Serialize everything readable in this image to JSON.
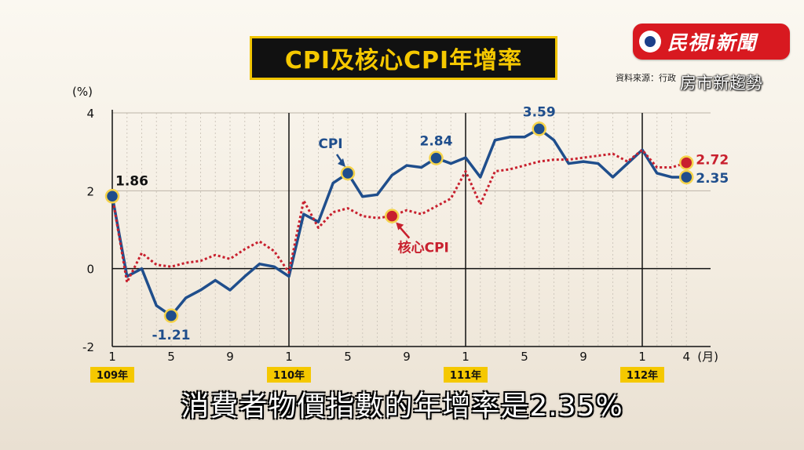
{
  "title": "CPI及核心CPI年增率",
  "logo": {
    "text": "民視i新聞"
  },
  "source": "資料來源：行政",
  "watermark": "房市新趨勢",
  "subtitle": "消費者物價指數的年增率是2.35%",
  "chart_data": {
    "type": "line",
    "ylabel": "(%)",
    "xlabel": "(月)",
    "ylim": [
      -2,
      4
    ],
    "y_ticks": [
      4,
      2,
      0,
      -2
    ],
    "x_ticks": [
      {
        "i": 0,
        "label": "1"
      },
      {
        "i": 4,
        "label": "5"
      },
      {
        "i": 8,
        "label": "9"
      },
      {
        "i": 12,
        "label": "1"
      },
      {
        "i": 16,
        "label": "5"
      },
      {
        "i": 20,
        "label": "9"
      },
      {
        "i": 24,
        "label": "1"
      },
      {
        "i": 28,
        "label": "5"
      },
      {
        "i": 32,
        "label": "9"
      },
      {
        "i": 36,
        "label": "1"
      },
      {
        "i": 39,
        "label": "4"
      }
    ],
    "year_labels": [
      {
        "i": 0,
        "label": "109年"
      },
      {
        "i": 12,
        "label": "110年"
      },
      {
        "i": 24,
        "label": "111年"
      },
      {
        "i": 36,
        "label": "112年"
      }
    ],
    "year_dividers": [
      12,
      24,
      36
    ],
    "num_points": 40,
    "series": [
      {
        "name": "CPI",
        "color": "#1f4e8c",
        "style": "solid",
        "values": [
          1.86,
          -0.2,
          0.0,
          -0.95,
          -1.21,
          -0.75,
          -0.55,
          -0.3,
          -0.55,
          -0.2,
          0.12,
          0.05,
          -0.2,
          1.4,
          1.2,
          2.2,
          2.45,
          1.85,
          1.9,
          2.4,
          2.65,
          2.6,
          2.84,
          2.7,
          2.85,
          2.35,
          3.3,
          3.38,
          3.38,
          3.59,
          3.3,
          2.7,
          2.75,
          2.7,
          2.35,
          2.7,
          3.05,
          2.45,
          2.35,
          2.35
        ],
        "markers": [
          {
            "i": 0,
            "label": "1.86"
          },
          {
            "i": 4,
            "label": "-1.21"
          },
          {
            "i": 16,
            "label": ""
          },
          {
            "i": 22,
            "label": "2.84"
          },
          {
            "i": 29,
            "label": "3.59"
          },
          {
            "i": 39,
            "label": "2.35"
          }
        ]
      },
      {
        "name": "核心CPI",
        "color": "#c8202e",
        "style": "dotted",
        "values": [
          1.86,
          -0.35,
          0.4,
          0.1,
          0.05,
          0.15,
          0.2,
          0.35,
          0.25,
          0.5,
          0.7,
          0.45,
          -0.1,
          1.75,
          1.05,
          1.45,
          1.55,
          1.35,
          1.3,
          1.35,
          1.5,
          1.4,
          1.6,
          1.8,
          2.5,
          1.65,
          2.5,
          2.55,
          2.65,
          2.75,
          2.8,
          2.8,
          2.85,
          2.9,
          2.95,
          2.75,
          3.05,
          2.6,
          2.6,
          2.72
        ],
        "markers": [
          {
            "i": 19,
            "label": ""
          },
          {
            "i": 39,
            "label": "2.72"
          }
        ]
      }
    ],
    "annotations": [
      {
        "text": "CPI",
        "series": 0
      },
      {
        "text": "核心CPI",
        "series": 1
      }
    ],
    "grid": true,
    "legend": "none"
  }
}
